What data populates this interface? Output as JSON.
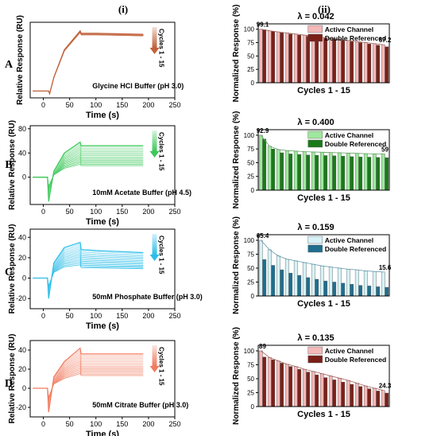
{
  "figure": {
    "col_i_label": "(i)",
    "col_ii_label": "(ii)",
    "row_labels": [
      "A",
      "B",
      "C",
      "D"
    ]
  },
  "chart_data": [
    {
      "panel": "A-i",
      "type": "line",
      "xlabel": "Time (s)",
      "ylabel": "Relative Response (RU)",
      "xlim": [
        -25,
        250
      ],
      "xticks": [
        0,
        50,
        100,
        150,
        200,
        250
      ],
      "ylim": [
        -20,
        200
      ],
      "yticks": [],
      "annotation": "Glycine HCl Buffer (pH 3.0)",
      "cycles_label": "Cycles 1 - 15",
      "color": "#c0603a",
      "cycle_count": 15,
      "series": [
        {
          "x": [
            -20,
            10,
            12,
            20,
            40,
            70,
            72,
            100,
            190
          ],
          "y": [
            0,
            0,
            -8,
            40,
            120,
            175,
            168,
            168,
            165
          ]
        }
      ]
    },
    {
      "panel": "A-ii",
      "type": "bar",
      "title": "λ = 0.042",
      "xlabel": "Cycles 1 - 15",
      "ylabel": "Normalized Response (%)",
      "ylim": [
        0,
        110
      ],
      "yticks": [
        0,
        25,
        50,
        75,
        100
      ],
      "legend": [
        "Active Channel",
        "Double Referenced"
      ],
      "legend_position": "top-right",
      "colors": [
        "#f4b8b8",
        "#7b2018"
      ],
      "series": [
        {
          "name": "Active Channel",
          "values": [
            100,
            97,
            95,
            93,
            91,
            89,
            87,
            85,
            83,
            81,
            79,
            77,
            75,
            73,
            71
          ]
        },
        {
          "name": "Double Referenced",
          "values": [
            99.1,
            96,
            93.5,
            91,
            89,
            87,
            85,
            83,
            81,
            79,
            77,
            75,
            72.5,
            70,
            67.2
          ]
        }
      ],
      "data_labels": [
        {
          "index": 0,
          "text": "99.1"
        },
        {
          "index": 14,
          "text": "67.2"
        }
      ]
    },
    {
      "panel": "B-i",
      "type": "line",
      "xlabel": "Time (s)",
      "ylabel": "Relative Response (RU)",
      "xlim": [
        -25,
        250
      ],
      "xticks": [
        0,
        50,
        100,
        150,
        200,
        250
      ],
      "ylim": [
        -45,
        85
      ],
      "yticks": [
        0,
        40,
        80
      ],
      "annotation": "10mM Acetate Buffer (pH 4.5)",
      "cycles_label": "Cycles 1 - 15",
      "color": "#3cc85a",
      "cycle_count": 15,
      "series": [
        {
          "x": [
            -20,
            8,
            10,
            20,
            40,
            70,
            72,
            100,
            190
          ],
          "y": [
            0,
            0,
            -40,
            10,
            40,
            58,
            52,
            52,
            52
          ]
        }
      ]
    },
    {
      "panel": "B-ii",
      "type": "bar",
      "title": "λ = 0.400",
      "xlabel": "Cycles 1 - 15",
      "ylabel": "Normalized Response (%)",
      "ylim": [
        0,
        110
      ],
      "yticks": [
        0,
        25,
        50,
        75,
        100
      ],
      "legend": [
        "Active Channel",
        "Double Referenced"
      ],
      "legend_position": "top-right",
      "colors": [
        "#9ee89e",
        "#1a7a1a"
      ],
      "series": [
        {
          "name": "Active Channel",
          "values": [
            100,
            80,
            74,
            72,
            71,
            70,
            69.5,
            69,
            68.5,
            68,
            67.5,
            67,
            66.5,
            66,
            66
          ]
        },
        {
          "name": "Double Referenced",
          "values": [
            92.9,
            75,
            68,
            66,
            65,
            64,
            63.5,
            63,
            62.5,
            62,
            61,
            60.5,
            60,
            59.5,
            59
          ]
        }
      ],
      "data_labels": [
        {
          "index": 0,
          "text": "92.9"
        },
        {
          "index": 14,
          "text": "59"
        }
      ]
    },
    {
      "panel": "C-i",
      "type": "line",
      "xlabel": "Time (s)",
      "ylabel": "Relative Response (RU)",
      "xlim": [
        -25,
        250
      ],
      "xticks": [
        0,
        50,
        100,
        150,
        200,
        250
      ],
      "ylim": [
        -30,
        48
      ],
      "yticks": [
        -20,
        0,
        20,
        40
      ],
      "annotation": "50mM Phosphate Buffer (pH 3.0)",
      "cycles_label": "Cycles 1 - 15",
      "color": "#2bbde8",
      "cycle_count": 15,
      "series": [
        {
          "x": [
            -20,
            8,
            10,
            20,
            40,
            70,
            72,
            100,
            190
          ],
          "y": [
            0,
            0,
            -20,
            15,
            30,
            35,
            28,
            27,
            25
          ]
        }
      ]
    },
    {
      "panel": "C-ii",
      "type": "bar",
      "title": "λ = 0.159",
      "xlabel": "Cycles 1 - 15",
      "ylabel": "Normalized Response (%)",
      "ylim": [
        0,
        110
      ],
      "yticks": [
        0,
        25,
        50,
        75,
        100
      ],
      "legend": [
        "Active Channel",
        "Double Referenced"
      ],
      "legend_position": "top-right",
      "colors": [
        "#d6f2f6",
        "#1f6e8e"
      ],
      "series": [
        {
          "name": "Active Channel",
          "values": [
            100,
            83,
            72,
            66,
            63,
            60,
            57,
            54,
            52,
            50,
            48,
            47,
            45,
            44,
            43
          ]
        },
        {
          "name": "Double Referenced",
          "values": [
            65.4,
            55,
            47,
            41,
            37,
            33,
            30,
            27,
            25,
            23,
            21,
            19,
            18,
            16.5,
            15.6
          ]
        }
      ],
      "data_labels": [
        {
          "index": 0,
          "text": "65.4"
        },
        {
          "index": 14,
          "text": "15.6"
        }
      ]
    },
    {
      "panel": "D-i",
      "type": "line",
      "xlabel": "Time (s)",
      "ylabel": "Relative Response (RU)",
      "xlim": [
        -25,
        250
      ],
      "xticks": [
        0,
        50,
        100,
        150,
        200,
        250
      ],
      "ylim": [
        -30,
        50
      ],
      "yticks": [
        -20,
        0,
        20,
        40
      ],
      "annotation": "50mM Citrate Buffer (pH 3.0)",
      "cycles_label": "Cycles 1 - 15",
      "color": "#f07a5e",
      "cycle_count": 15,
      "series": [
        {
          "x": [
            -20,
            8,
            10,
            20,
            40,
            70,
            72,
            100,
            190
          ],
          "y": [
            0,
            0,
            -25,
            12,
            28,
            42,
            36,
            36,
            36
          ]
        }
      ]
    },
    {
      "panel": "D-ii",
      "type": "bar",
      "title": "λ = 0.135",
      "xlabel": "Cycles 1 - 15",
      "ylabel": "Normalized Response (%)",
      "ylim": [
        0,
        110
      ],
      "yticks": [
        0,
        25,
        50,
        75,
        100
      ],
      "legend": [
        "Active Channel",
        "Double Referenced"
      ],
      "legend_position": "top-right",
      "colors": [
        "#f4b8b8",
        "#7b2018"
      ],
      "series": [
        {
          "name": "Active Channel",
          "values": [
            100,
            88,
            82,
            76,
            72,
            67,
            63,
            59,
            55,
            51,
            47,
            42,
            37,
            33,
            29
          ]
        },
        {
          "name": "Double Referenced",
          "values": [
            89,
            84,
            78,
            72,
            67,
            62,
            57,
            52,
            48,
            44,
            40,
            36,
            32,
            28,
            24.3
          ]
        }
      ],
      "data_labels": [
        {
          "index": 0,
          "text": "89"
        },
        {
          "index": 14,
          "text": "24.3"
        }
      ]
    }
  ]
}
